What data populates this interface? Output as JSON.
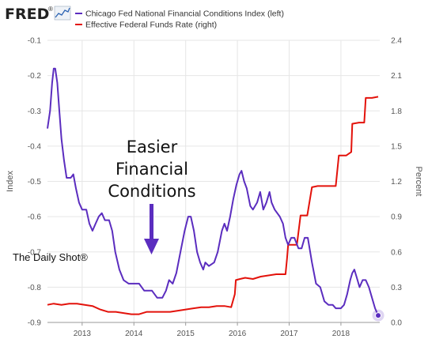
{
  "logo": {
    "text": "FRED",
    "registered": "®"
  },
  "legend": {
    "items": [
      {
        "label": "Chicago Fed National Financial Conditions Index (left)",
        "color": "#5b2dbf"
      },
      {
        "label": "Effective Federal Funds Rate (right)",
        "color": "#e3120b"
      }
    ]
  },
  "annotation": {
    "lines": [
      "Easier",
      "Financial",
      "Conditions"
    ],
    "arrow_color": "#5b2dbf"
  },
  "watermark": "The Daily Shot®",
  "chart_data": {
    "type": "line",
    "grid": true,
    "left_axis": {
      "label": "Index",
      "range": [
        -0.9,
        -0.1
      ],
      "ticks": [
        "-0.1",
        "-0.2",
        "-0.3",
        "-0.4",
        "-0.5",
        "-0.6",
        "-0.7",
        "-0.8",
        "-0.9"
      ]
    },
    "right_axis": {
      "label": "Percent",
      "range": [
        0.0,
        2.4
      ],
      "ticks": [
        "2.4",
        "2.1",
        "1.8",
        "1.5",
        "1.2",
        "0.9",
        "0.6",
        "0.3",
        "0.0"
      ]
    },
    "x_axis": {
      "range": [
        2012.33,
        2018.75
      ],
      "ticks": [
        2013,
        2014,
        2015,
        2016,
        2017,
        2018
      ],
      "tick_labels": [
        "2013",
        "2014",
        "2015",
        "2016",
        "2017",
        "2018"
      ]
    },
    "series": [
      {
        "name": "Chicago Fed National Financial Conditions Index (left)",
        "axis": "left",
        "color": "#5b2dbf",
        "points": [
          [
            2012.33,
            -0.35
          ],
          [
            2012.38,
            -0.3
          ],
          [
            2012.42,
            -0.22
          ],
          [
            2012.45,
            -0.18
          ],
          [
            2012.48,
            -0.18
          ],
          [
            2012.52,
            -0.22
          ],
          [
            2012.56,
            -0.3
          ],
          [
            2012.6,
            -0.38
          ],
          [
            2012.65,
            -0.44
          ],
          [
            2012.7,
            -0.49
          ],
          [
            2012.78,
            -0.49
          ],
          [
            2012.83,
            -0.48
          ],
          [
            2012.88,
            -0.52
          ],
          [
            2012.94,
            -0.56
          ],
          [
            2013.0,
            -0.58
          ],
          [
            2013.08,
            -0.58
          ],
          [
            2013.14,
            -0.62
          ],
          [
            2013.2,
            -0.64
          ],
          [
            2013.26,
            -0.62
          ],
          [
            2013.32,
            -0.6
          ],
          [
            2013.38,
            -0.59
          ],
          [
            2013.44,
            -0.61
          ],
          [
            2013.52,
            -0.61
          ],
          [
            2013.58,
            -0.64
          ],
          [
            2013.64,
            -0.7
          ],
          [
            2013.72,
            -0.75
          ],
          [
            2013.8,
            -0.78
          ],
          [
            2013.9,
            -0.79
          ],
          [
            2014.0,
            -0.79
          ],
          [
            2014.1,
            -0.79
          ],
          [
            2014.2,
            -0.81
          ],
          [
            2014.35,
            -0.81
          ],
          [
            2014.45,
            -0.83
          ],
          [
            2014.55,
            -0.83
          ],
          [
            2014.62,
            -0.81
          ],
          [
            2014.68,
            -0.78
          ],
          [
            2014.75,
            -0.79
          ],
          [
            2014.82,
            -0.76
          ],
          [
            2014.9,
            -0.7
          ],
          [
            2014.98,
            -0.64
          ],
          [
            2015.05,
            -0.6
          ],
          [
            2015.1,
            -0.6
          ],
          [
            2015.16,
            -0.64
          ],
          [
            2015.22,
            -0.7
          ],
          [
            2015.28,
            -0.73
          ],
          [
            2015.34,
            -0.75
          ],
          [
            2015.38,
            -0.73
          ],
          [
            2015.45,
            -0.74
          ],
          [
            2015.55,
            -0.73
          ],
          [
            2015.62,
            -0.7
          ],
          [
            2015.7,
            -0.64
          ],
          [
            2015.75,
            -0.62
          ],
          [
            2015.8,
            -0.64
          ],
          [
            2015.86,
            -0.6
          ],
          [
            2015.92,
            -0.55
          ],
          [
            2015.98,
            -0.51
          ],
          [
            2016.04,
            -0.48
          ],
          [
            2016.08,
            -0.47
          ],
          [
            2016.13,
            -0.5
          ],
          [
            2016.18,
            -0.52
          ],
          [
            2016.25,
            -0.57
          ],
          [
            2016.3,
            -0.58
          ],
          [
            2016.38,
            -0.56
          ],
          [
            2016.44,
            -0.53
          ],
          [
            2016.5,
            -0.58
          ],
          [
            2016.56,
            -0.56
          ],
          [
            2016.62,
            -0.53
          ],
          [
            2016.66,
            -0.56
          ],
          [
            2016.72,
            -0.58
          ],
          [
            2016.82,
            -0.6
          ],
          [
            2016.88,
            -0.62
          ],
          [
            2016.93,
            -0.66
          ],
          [
            2016.98,
            -0.68
          ],
          [
            2017.04,
            -0.66
          ],
          [
            2017.1,
            -0.66
          ],
          [
            2017.18,
            -0.69
          ],
          [
            2017.24,
            -0.69
          ],
          [
            2017.3,
            -0.66
          ],
          [
            2017.36,
            -0.66
          ],
          [
            2017.44,
            -0.73
          ],
          [
            2017.52,
            -0.79
          ],
          [
            2017.6,
            -0.8
          ],
          [
            2017.68,
            -0.84
          ],
          [
            2017.76,
            -0.85
          ],
          [
            2017.84,
            -0.85
          ],
          [
            2017.9,
            -0.86
          ],
          [
            2018.0,
            -0.86
          ],
          [
            2018.06,
            -0.85
          ],
          [
            2018.12,
            -0.82
          ],
          [
            2018.18,
            -0.78
          ],
          [
            2018.22,
            -0.76
          ],
          [
            2018.26,
            -0.75
          ],
          [
            2018.3,
            -0.77
          ],
          [
            2018.36,
            -0.8
          ],
          [
            2018.42,
            -0.78
          ],
          [
            2018.48,
            -0.78
          ],
          [
            2018.54,
            -0.8
          ],
          [
            2018.6,
            -0.83
          ],
          [
            2018.66,
            -0.86
          ],
          [
            2018.72,
            -0.88
          ]
        ]
      },
      {
        "name": "Effective Federal Funds Rate (right)",
        "axis": "right",
        "color": "#e3120b",
        "points": [
          [
            2012.33,
            0.15
          ],
          [
            2012.45,
            0.16
          ],
          [
            2012.6,
            0.15
          ],
          [
            2012.75,
            0.16
          ],
          [
            2012.9,
            0.16
          ],
          [
            2013.05,
            0.15
          ],
          [
            2013.2,
            0.14
          ],
          [
            2013.35,
            0.11
          ],
          [
            2013.5,
            0.09
          ],
          [
            2013.65,
            0.09
          ],
          [
            2013.8,
            0.08
          ],
          [
            2013.95,
            0.07
          ],
          [
            2014.1,
            0.07
          ],
          [
            2014.25,
            0.09
          ],
          [
            2014.4,
            0.09
          ],
          [
            2014.55,
            0.09
          ],
          [
            2014.7,
            0.09
          ],
          [
            2014.85,
            0.1
          ],
          [
            2015.0,
            0.11
          ],
          [
            2015.15,
            0.12
          ],
          [
            2015.3,
            0.13
          ],
          [
            2015.45,
            0.13
          ],
          [
            2015.6,
            0.14
          ],
          [
            2015.75,
            0.14
          ],
          [
            2015.88,
            0.13
          ],
          [
            2015.95,
            0.24
          ],
          [
            2015.97,
            0.36
          ],
          [
            2016.05,
            0.37
          ],
          [
            2016.15,
            0.38
          ],
          [
            2016.3,
            0.37
          ],
          [
            2016.45,
            0.39
          ],
          [
            2016.6,
            0.4
          ],
          [
            2016.75,
            0.41
          ],
          [
            2016.93,
            0.41
          ],
          [
            2016.96,
            0.55
          ],
          [
            2016.98,
            0.66
          ],
          [
            2017.05,
            0.66
          ],
          [
            2017.15,
            0.66
          ],
          [
            2017.22,
            0.91
          ],
          [
            2017.35,
            0.91
          ],
          [
            2017.44,
            1.15
          ],
          [
            2017.55,
            1.16
          ],
          [
            2017.7,
            1.16
          ],
          [
            2017.9,
            1.16
          ],
          [
            2017.96,
            1.42
          ],
          [
            2018.1,
            1.42
          ],
          [
            2018.2,
            1.45
          ],
          [
            2018.22,
            1.69
          ],
          [
            2018.35,
            1.7
          ],
          [
            2018.45,
            1.7
          ],
          [
            2018.48,
            1.91
          ],
          [
            2018.6,
            1.91
          ],
          [
            2018.72,
            1.92
          ]
        ]
      }
    ]
  }
}
